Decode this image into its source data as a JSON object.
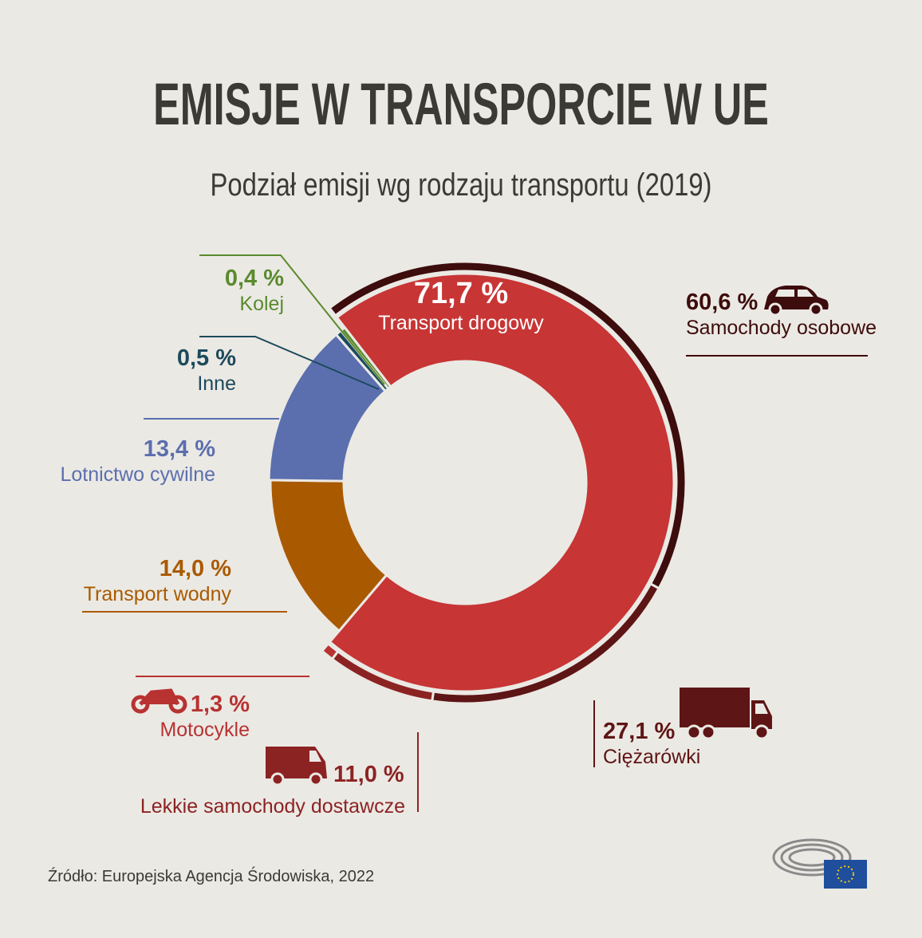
{
  "title": "EMISJE W TRANSPORCIE W UE",
  "subtitle": "Podział emisji wg rodzaju transportu (2019)",
  "source": "Źródło: Europejska Agencja Środowiska, 2022",
  "chart_data": {
    "type": "pie",
    "variant": "donut with sub-ring",
    "title": "EMISJE W TRANSPORCIE W UE",
    "subtitle": "Podział emisji wg rodzaju transportu (2019)",
    "unit": "%",
    "categories": [
      "Transport drogowy",
      "Transport wodny",
      "Lotnictwo cywilne",
      "Inne",
      "Kolej"
    ],
    "values": [
      71.7,
      14.0,
      13.4,
      0.5,
      0.4
    ],
    "labels": [
      "71,7 %",
      "14,0 %",
      "13,4 %",
      "0,5 %",
      "0,4 %"
    ],
    "colors": [
      "#c73535",
      "#a95a00",
      "#5b6fae",
      "#1c4a5c",
      "#5a8a2e"
    ],
    "breakdown": {
      "parent": "Transport drogowy",
      "categories": [
        "Samochody osobowe",
        "Ciężarówki",
        "Lekkie samochody dostawcze",
        "Motocykle"
      ],
      "values": [
        60.6,
        27.1,
        11.0,
        1.3
      ],
      "labels": [
        "60,6 %",
        "27,1 %",
        "11,0 %",
        "1,3 %"
      ],
      "colors": [
        "#3d0c0c",
        "#5e1515",
        "#8c2323",
        "#b83232"
      ],
      "icons": [
        "car-icon",
        "truck-icon",
        "van-icon",
        "motorcycle-icon"
      ]
    }
  }
}
